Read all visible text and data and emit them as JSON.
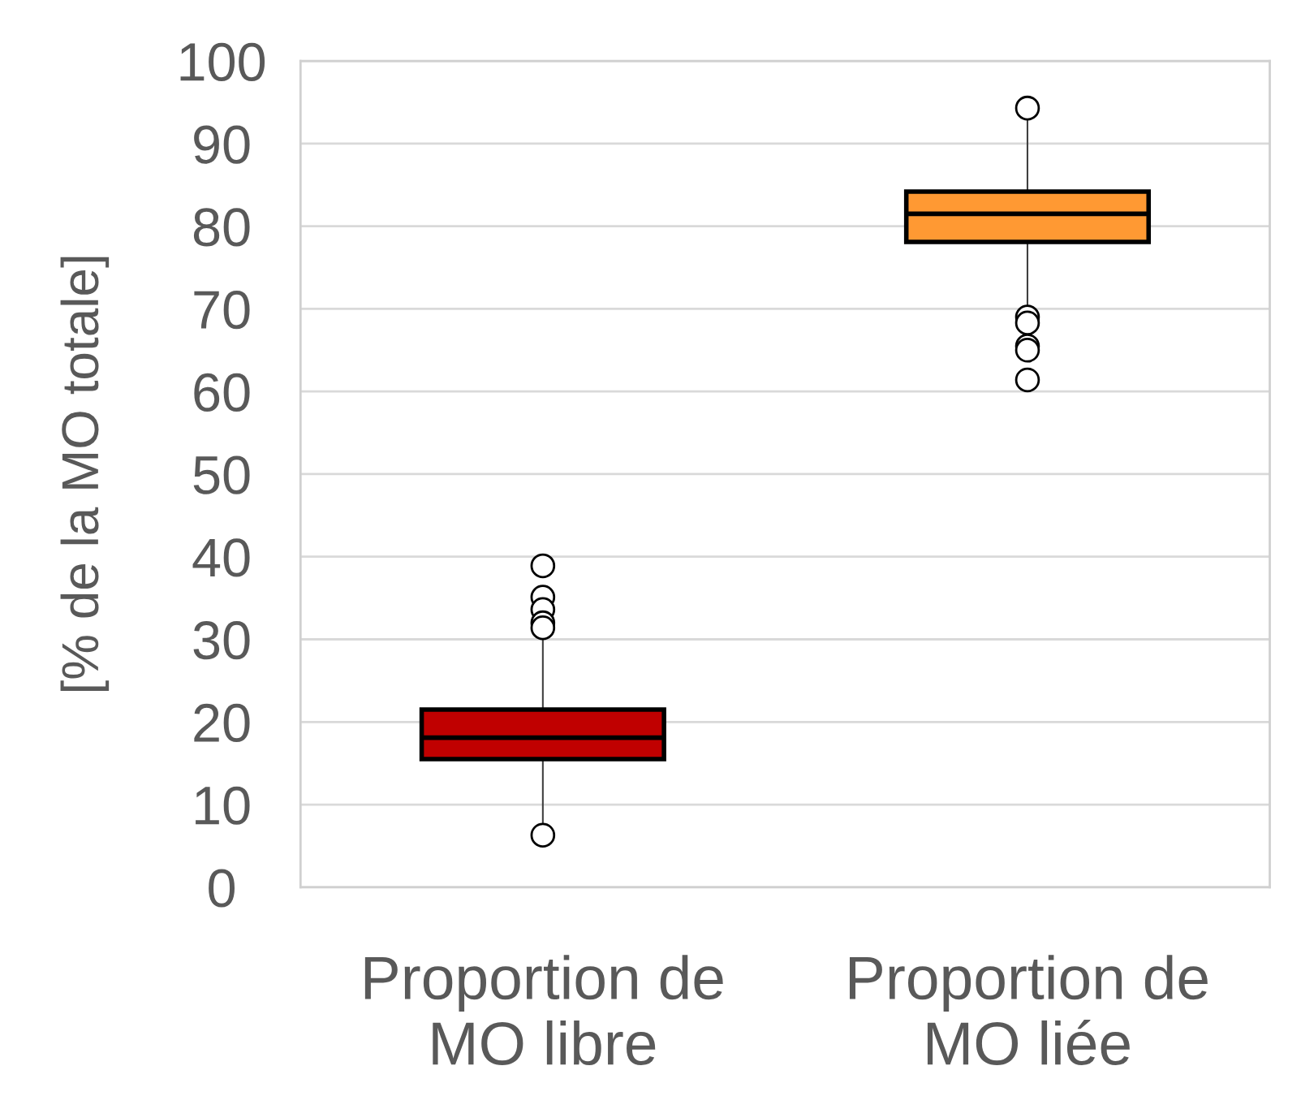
{
  "chart_data": {
    "type": "box",
    "ylabel": "[% de la MO totale]",
    "categories": [
      "Proportion de MO libre",
      "Proportion de MO liée"
    ],
    "series": [
      {
        "colors": [
          "#c00000",
          "#ff9933"
        ],
        "boxes": [
          {
            "low": 7.8,
            "q1": 15.5,
            "median": 18.1,
            "q3": 21.5,
            "high": 30.4,
            "outliers": [
              38.9,
              35.1,
              33.6,
              32.0,
              31.4,
              6.3
            ]
          },
          {
            "low": 70.4,
            "q1": 78.1,
            "median": 81.5,
            "q3": 84.2,
            "high": 92.8,
            "outliers": [
              94.3,
              69.0,
              68.3,
              65.5,
              65.0,
              61.4
            ]
          }
        ]
      }
    ],
    "ylim": [
      0,
      100
    ],
    "yticks": [
      0,
      10,
      20,
      30,
      40,
      50,
      60,
      70,
      80,
      90,
      100
    ],
    "grid": "y"
  }
}
